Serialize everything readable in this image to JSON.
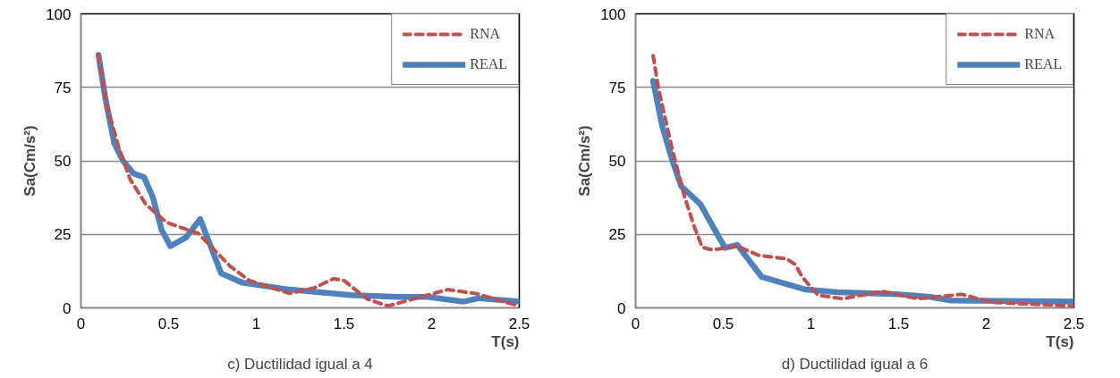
{
  "chart_data": [
    {
      "type": "line",
      "xlabel": "T(s)",
      "ylabel": "Sa(Cm/s²)",
      "annotations": [
        "c) Ductilidad igual a 4"
      ],
      "xlim": [
        0,
        2.5
      ],
      "ylim": [
        0,
        100
      ],
      "xticks": [
        0,
        0.5,
        1,
        1.5,
        2,
        2.5
      ],
      "yticks": [
        0,
        25,
        50,
        75,
        100
      ],
      "grid": "y",
      "legend": "top right",
      "series": [
        {
          "name": "RNA",
          "color": "#c0504d",
          "line_style": "dashed",
          "x": [
            0.1,
            0.15,
            0.22,
            0.28,
            0.37,
            0.49,
            0.67,
            0.85,
            0.96,
            1.19,
            1.33,
            1.44,
            1.5,
            1.63,
            1.75,
            1.9,
            2.09,
            2.25,
            2.5
          ],
          "values": [
            86,
            68.5,
            53.7,
            43.8,
            35.2,
            29,
            25.3,
            14.2,
            9.3,
            4.9,
            6.8,
            9.9,
            9.3,
            3.1,
            0.6,
            3.1,
            6.2,
            4.9,
            0.6
          ]
        },
        {
          "name": "REAL",
          "color": "#4f81bd",
          "line_style": "solid",
          "x": [
            0.1,
            0.14,
            0.19,
            0.24,
            0.3,
            0.36,
            0.41,
            0.46,
            0.51,
            0.6,
            0.68,
            0.72,
            0.8,
            0.92,
            1.19,
            1.54,
            1.81,
            1.98,
            2.18,
            2.27,
            2.5
          ],
          "values": [
            86,
            71,
            56,
            50,
            45.7,
            44.4,
            37.6,
            26.5,
            21,
            24,
            30.2,
            24,
            11.7,
            8.6,
            6.2,
            4.3,
            3.7,
            3.7,
            2.1,
            3.3,
            2.1
          ]
        }
      ]
    },
    {
      "type": "line",
      "xlabel": "T(s)",
      "ylabel": "Sa(Cm/s²)",
      "annotations": [
        "d) Ductilidad igual a 6"
      ],
      "xlim": [
        0,
        2.5
      ],
      "ylim": [
        0,
        100
      ],
      "xticks": [
        0,
        0.5,
        1,
        1.5,
        2,
        2.5
      ],
      "yticks": [
        0,
        25,
        50,
        75,
        100
      ],
      "grid": "y",
      "legend": "top right",
      "series": [
        {
          "name": "RNA",
          "color": "#c0504d",
          "line_style": "dashed",
          "x": [
            0.1,
            0.13,
            0.21,
            0.28,
            0.33,
            0.38,
            0.44,
            0.58,
            0.7,
            0.86,
            0.91,
            0.95,
            1.04,
            1.18,
            1.41,
            1.61,
            1.86,
            2.03,
            2.5
          ],
          "values": [
            85.8,
            74.7,
            53.7,
            37.7,
            28.4,
            20.6,
            19.7,
            21,
            17.9,
            16.7,
            14.8,
            10.5,
            4.3,
            3.1,
            5.6,
            3.1,
            4.6,
            1.9,
            0.6
          ]
        },
        {
          "name": "REAL",
          "color": "#4f81bd",
          "line_style": "solid",
          "x": [
            0.1,
            0.15,
            0.21,
            0.26,
            0.37,
            0.44,
            0.51,
            0.58,
            0.61,
            0.72,
            0.97,
            1.15,
            1.5,
            1.68,
            1.8,
            2.5
          ],
          "values": [
            77.2,
            62.3,
            50,
            41.4,
            35.2,
            27.8,
            20.4,
            21.4,
            19.1,
            10.5,
            6.2,
            5.3,
            4.6,
            3.7,
            2.5,
            2.1
          ]
        }
      ]
    }
  ]
}
